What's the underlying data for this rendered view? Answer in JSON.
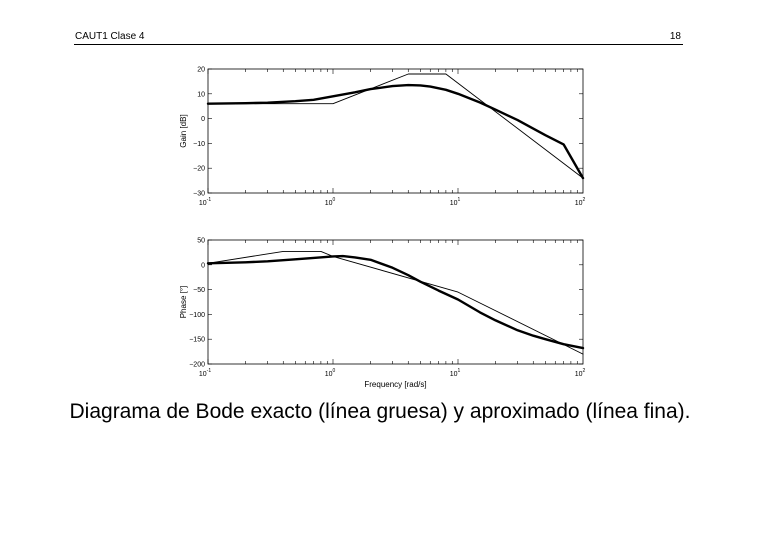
{
  "header": {
    "left": "CAUT1 Clase 4",
    "right": "18"
  },
  "caption": "Diagrama de Bode exacto (línea gruesa) y aproximado (línea fina).",
  "chart_data": [
    {
      "type": "line",
      "ylabel": "Gain [dB]",
      "xlabel": "",
      "xscale": "log",
      "xlim": [
        0.1,
        100
      ],
      "ylim": [
        -30,
        20
      ],
      "yticks": [
        20,
        10,
        0,
        -10,
        -20,
        -30
      ],
      "xticks": [
        {
          "base": "10",
          "exp": "-1"
        },
        {
          "base": "10",
          "exp": "0"
        },
        {
          "base": "10",
          "exp": "1"
        },
        {
          "base": "10",
          "exp": "2"
        }
      ],
      "grid": false,
      "series": [
        {
          "style": "thick",
          "x": [
            0.1,
            0.2,
            0.3,
            0.5,
            0.7,
            1,
            1.5,
            2,
            3,
            4,
            5,
            6,
            8,
            10,
            15,
            20,
            30,
            50,
            70,
            100
          ],
          "y": [
            6,
            6.2,
            6.4,
            7,
            7.6,
            9,
            10.6,
            11.9,
            13.1,
            13.5,
            13.4,
            12.9,
            11.6,
            10,
            6.5,
            3.6,
            -0.6,
            -6.7,
            -10.4,
            -24
          ]
        },
        {
          "style": "thin",
          "x": [
            0.1,
            1,
            4,
            8,
            100
          ],
          "y": [
            6,
            6,
            18,
            18,
            -24
          ]
        }
      ]
    },
    {
      "type": "line",
      "ylabel": "Phase [°]",
      "xlabel": "Frequency [rad/s]",
      "xscale": "log",
      "xlim": [
        0.1,
        100
      ],
      "ylim": [
        -200,
        50
      ],
      "yticks": [
        50,
        0,
        -50,
        -100,
        -150,
        -200
      ],
      "xticks": [
        {
          "base": "10",
          "exp": "-1"
        },
        {
          "base": "10",
          "exp": "0"
        },
        {
          "base": "10",
          "exp": "1"
        },
        {
          "base": "10",
          "exp": "2"
        }
      ],
      "grid": false,
      "series": [
        {
          "style": "thick",
          "x": [
            0.1,
            0.2,
            0.3,
            0.5,
            0.7,
            1,
            1.2,
            1.5,
            2,
            3,
            4,
            5,
            7,
            10,
            15,
            20,
            30,
            40,
            50,
            70,
            100
          ],
          "y": [
            3,
            5,
            7,
            11,
            14,
            17,
            17.5,
            15,
            10,
            -6,
            -21,
            -34,
            -52,
            -70,
            -96,
            -112,
            -132,
            -143,
            -150,
            -160,
            -168
          ]
        },
        {
          "style": "thin",
          "x": [
            0.1,
            0.4,
            0.8,
            1,
            10,
            100
          ],
          "y": [
            3,
            27,
            27,
            17,
            -55,
            -180
          ]
        }
      ]
    }
  ]
}
